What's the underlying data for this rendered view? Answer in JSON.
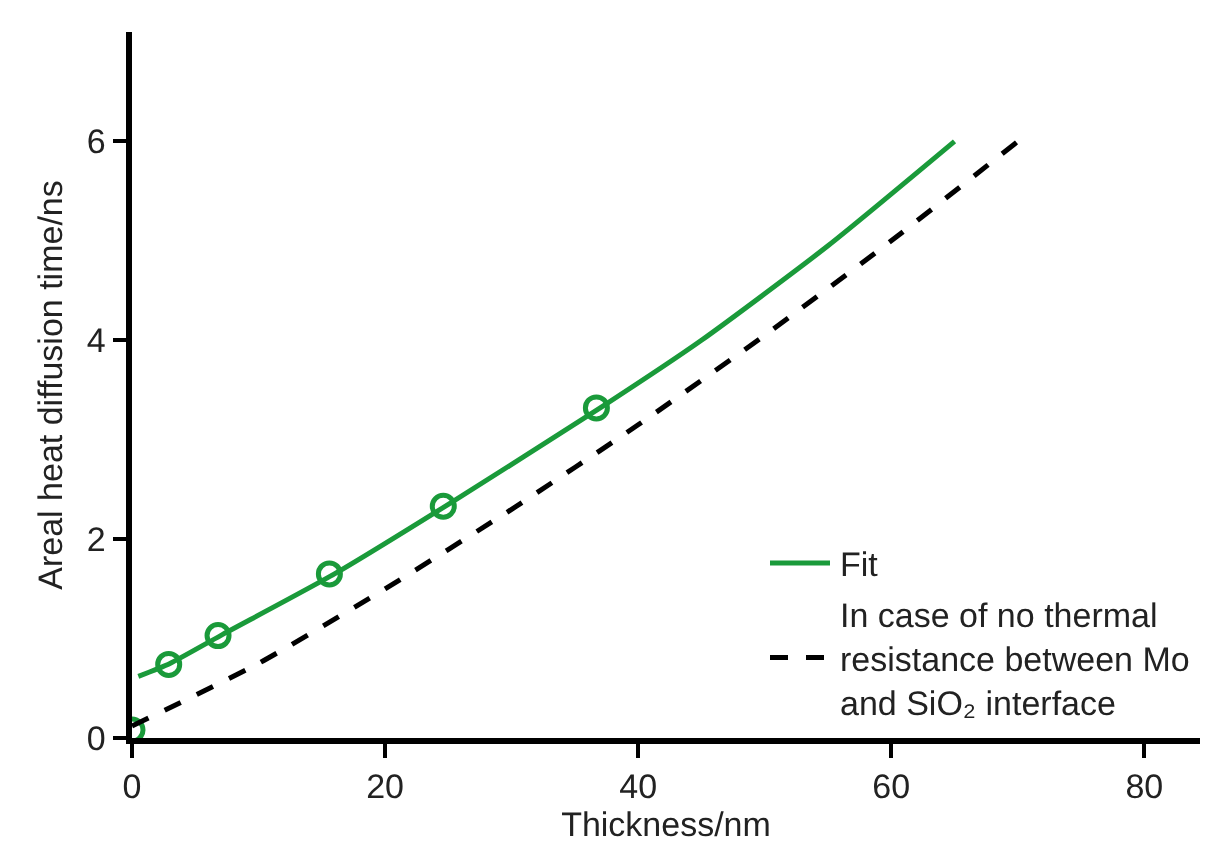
{
  "chart_data": {
    "type": "line",
    "xlabel": "Thickness/nm",
    "ylabel": "Areal heat diffusion time/ns",
    "xlim": [
      0,
      84.4
    ],
    "ylim": [
      0,
      7.1
    ],
    "xticks": [
      0,
      20,
      40,
      60,
      80
    ],
    "yticks": [
      0,
      2,
      4,
      6
    ],
    "legend": "bottom right",
    "series": [
      {
        "type": "scatter",
        "color": "#1a9a3a",
        "marker": "circle",
        "x": [
          0,
          2.9,
          6.8,
          15.6,
          24.6,
          36.7
        ],
        "values": [
          0.08,
          0.74,
          1.03,
          1.65,
          2.33,
          3.32
        ]
      },
      {
        "name": "Fit",
        "color": "#1a9a3a",
        "line_style": "solid",
        "x": [
          0.5,
          3,
          7,
          16,
          25,
          37,
          45,
          55,
          65
        ],
        "values": [
          0.62,
          0.75,
          1.03,
          1.65,
          2.35,
          3.32,
          4.0,
          4.95,
          6.0
        ]
      },
      {
        "name": "In case of no thermal resistance between Mo and SiO₂ interface",
        "color": "#000000",
        "line_style": "dashed",
        "x": [
          0,
          10,
          20,
          30,
          40,
          50,
          60,
          70
        ],
        "values": [
          0.12,
          0.75,
          1.5,
          2.3,
          3.15,
          4.05,
          5.0,
          6.0
        ]
      }
    ]
  }
}
